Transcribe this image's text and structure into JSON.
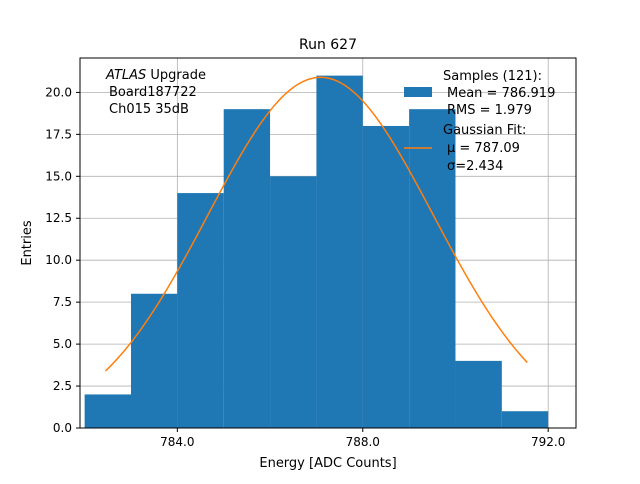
{
  "chart_data": {
    "type": "bar",
    "title": "Run 627",
    "xlabel": "Energy [ADC Counts]",
    "ylabel": "Entries",
    "xlim": [
      781.9,
      792.6
    ],
    "ylim": [
      0,
      22.05
    ],
    "grid": true,
    "xticks": [
      784.0,
      788.0,
      792.0
    ],
    "xtick_labels": [
      "784.0",
      "788.0",
      "792.0"
    ],
    "yticks": [
      0.0,
      2.5,
      5.0,
      7.5,
      10.0,
      12.5,
      15.0,
      17.5,
      20.0
    ],
    "ytick_labels": [
      "0.0",
      "2.5",
      "5.0",
      "7.5",
      "10.0",
      "12.5",
      "15.0",
      "17.5",
      "20.0"
    ],
    "histogram": {
      "bin_edges": [
        782,
        783,
        784,
        785,
        786,
        787,
        788,
        789,
        790,
        791,
        792
      ],
      "counts": [
        2,
        8,
        14,
        19,
        15,
        21,
        18,
        19,
        4,
        1
      ],
      "color": "#1f77b4"
    },
    "fit": {
      "mu": 787.09,
      "sigma": 2.434,
      "amplitude": 20.9,
      "x_range": [
        782.45,
        791.55
      ],
      "color": "#ff7f0e"
    },
    "annotation": {
      "experiment": "ATLAS",
      "experiment_suffix": " Upgrade",
      "board": "Board187722",
      "channel": "Ch015 35dB"
    },
    "legend": {
      "placement": "top-right",
      "samples_title": "Samples (121):",
      "samples_mean": "Mean = 786.919",
      "samples_rms": "RMS = 1.979",
      "fit_title": "Gaussian Fit:",
      "fit_mu": "μ = 787.09",
      "fit_sigma": "σ=2.434"
    }
  }
}
